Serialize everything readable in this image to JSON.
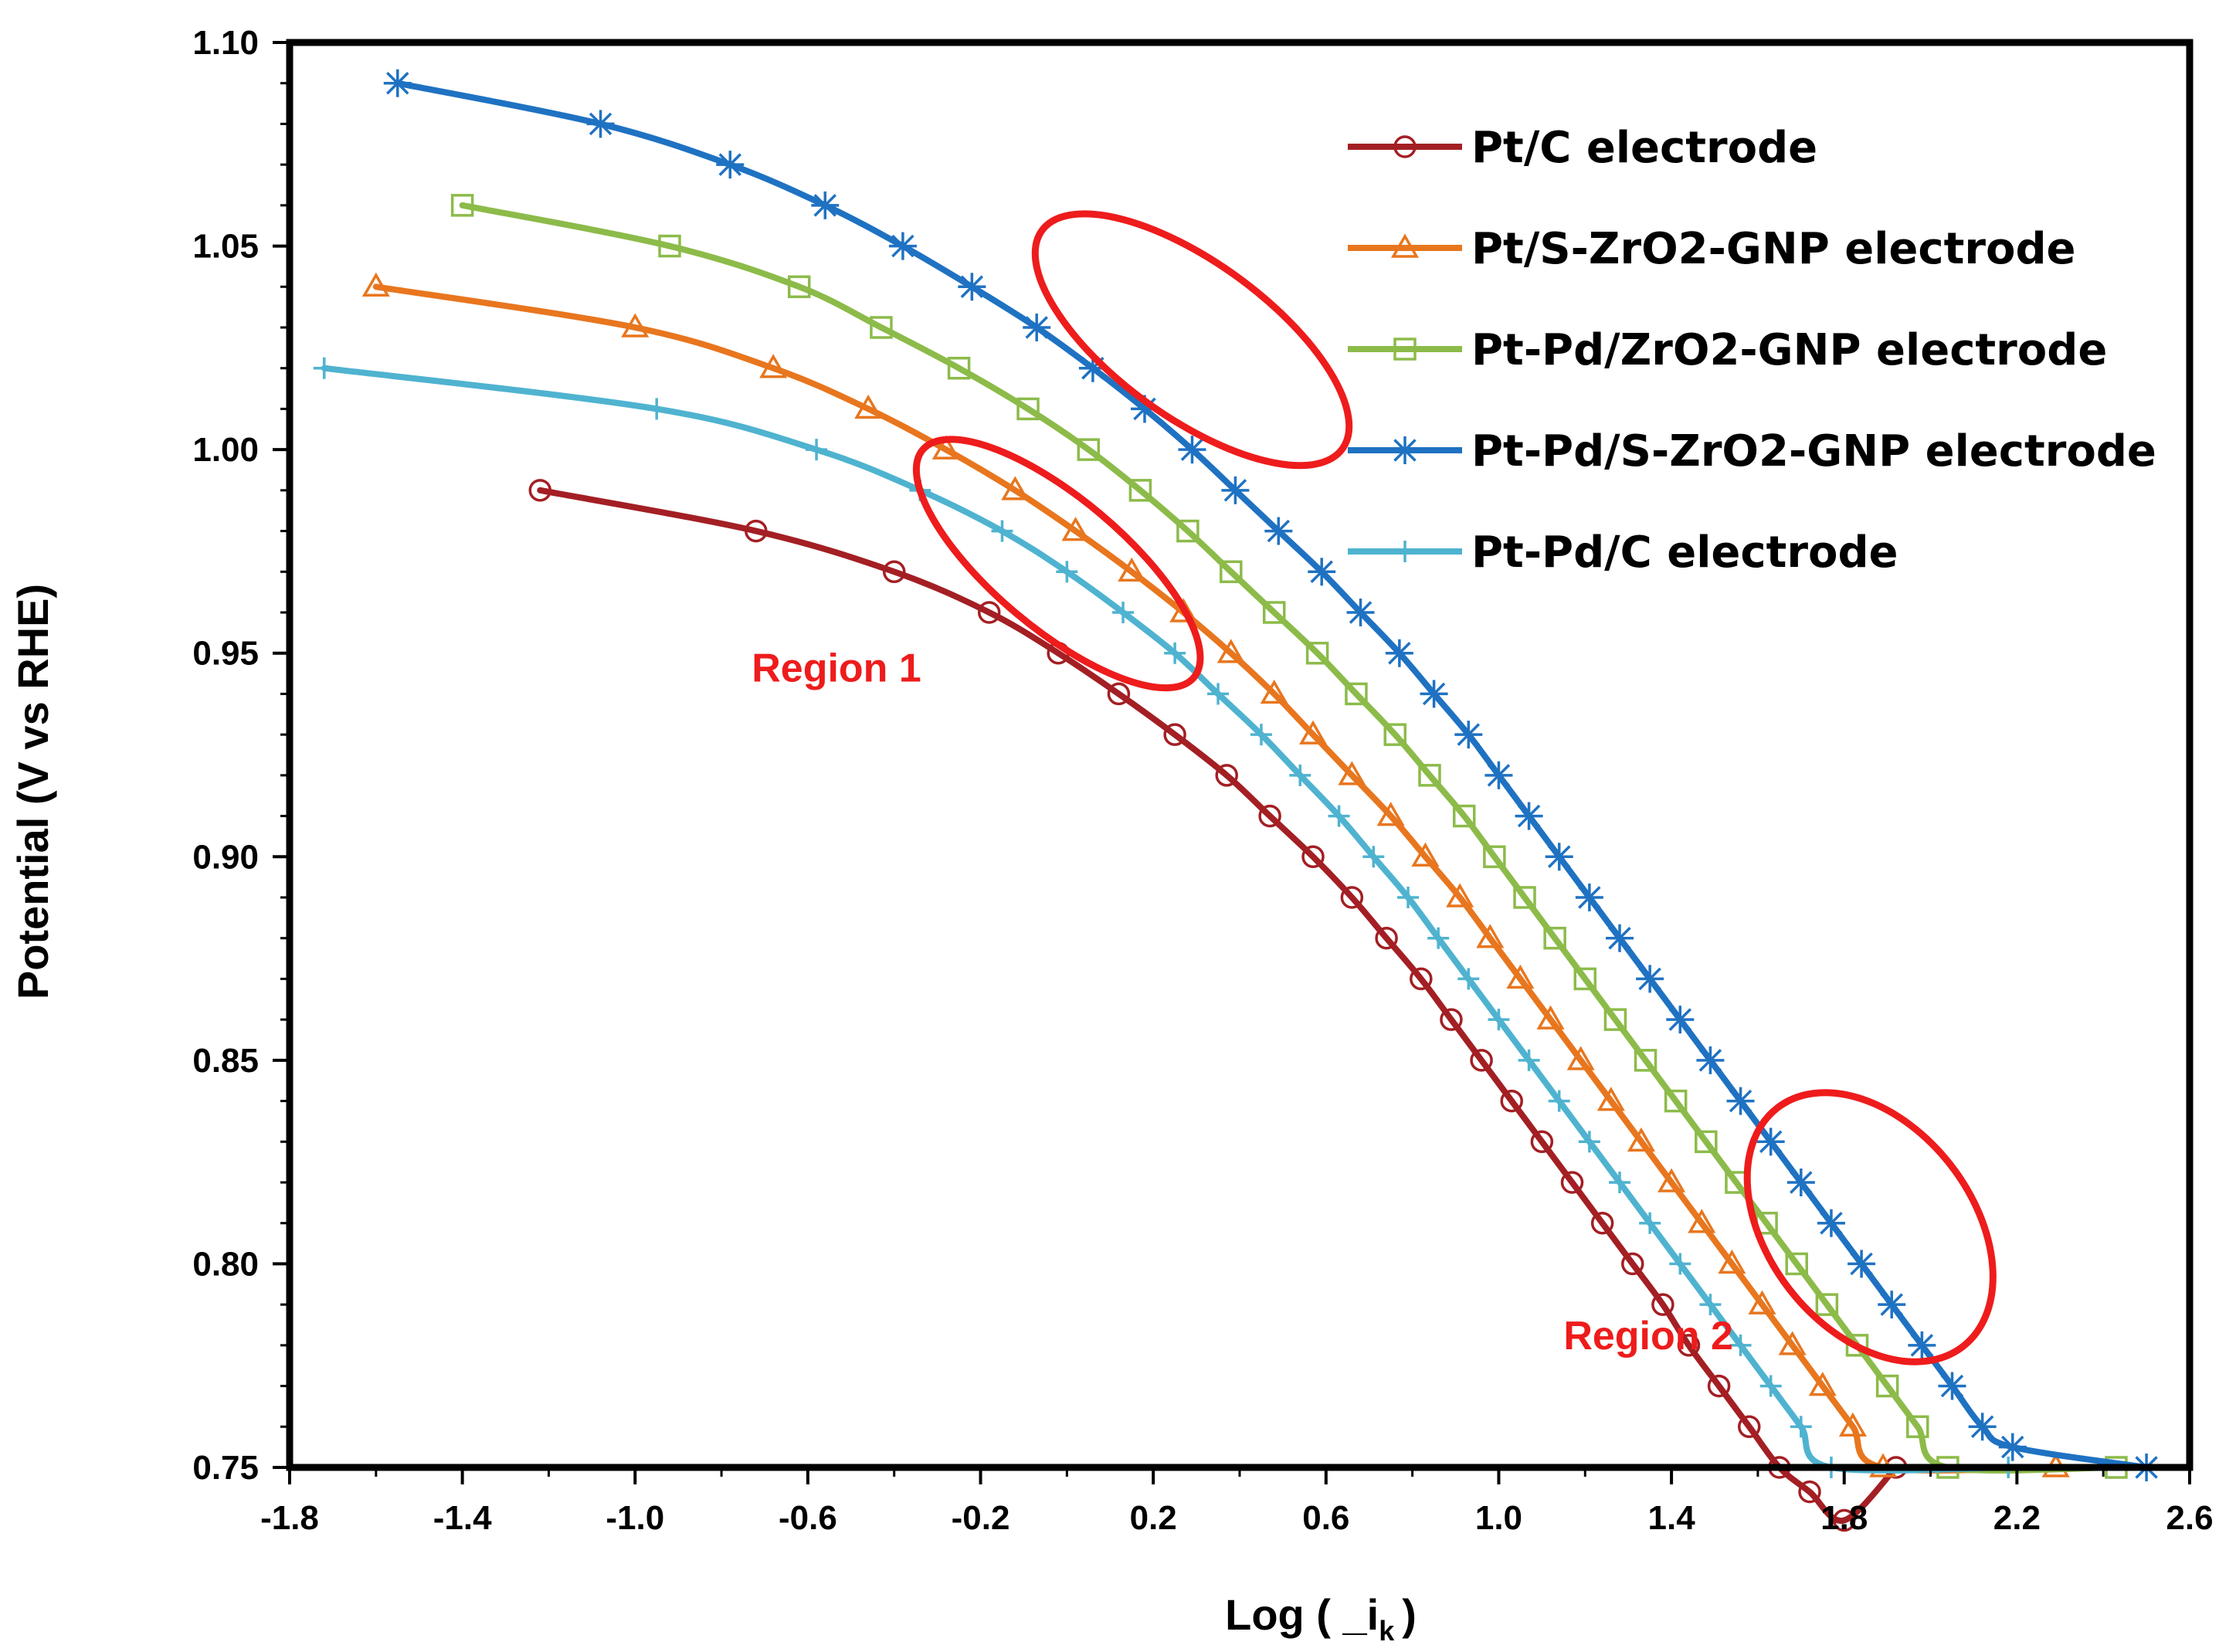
{
  "chart_data": {
    "type": "line",
    "title": "",
    "xlabel": "Log ( _i",
    "xlabel_sub": "k",
    "xlabel_close": ")",
    "ylabel": "Potential (V vs RHE)",
    "xlim": [
      -1.8,
      2.6
    ],
    "ylim": [
      0.75,
      1.1
    ],
    "x_ticks": [
      -1.8,
      -1.4,
      -1.0,
      -0.6,
      -0.2,
      0.2,
      0.6,
      1.0,
      1.4,
      1.8,
      2.2,
      2.6
    ],
    "x_tick_labels": [
      "-1.8",
      "-1.4",
      "-1.0",
      "-0.6",
      "-0.2",
      "0.2",
      "0.6",
      "1.0",
      "1.4",
      "1.8",
      "2.2",
      "2.6"
    ],
    "y_ticks": [
      0.75,
      0.8,
      0.85,
      0.9,
      0.95,
      1.0,
      1.05,
      1.1
    ],
    "y_tick_labels": [
      "0.75",
      "0.80",
      "0.85",
      "0.90",
      "0.95",
      "1.00",
      "1.05",
      "1.10"
    ],
    "legend_position": "top-right",
    "series": [
      {
        "name": "Pt/C electrode",
        "color": "#a31f24",
        "marker": "circle",
        "points": [
          [
            -1.22,
            0.99
          ],
          [
            -0.72,
            0.98
          ],
          [
            -0.4,
            0.97
          ],
          [
            -0.18,
            0.96
          ],
          [
            -0.02,
            0.95
          ],
          [
            0.12,
            0.94
          ],
          [
            0.25,
            0.93
          ],
          [
            0.37,
            0.92
          ],
          [
            0.47,
            0.91
          ],
          [
            0.57,
            0.9
          ],
          [
            0.66,
            0.89
          ],
          [
            0.74,
            0.88
          ],
          [
            0.82,
            0.87
          ],
          [
            0.89,
            0.86
          ],
          [
            0.96,
            0.85
          ],
          [
            1.03,
            0.84
          ],
          [
            1.1,
            0.83
          ],
          [
            1.17,
            0.82
          ],
          [
            1.24,
            0.81
          ],
          [
            1.31,
            0.8
          ],
          [
            1.38,
            0.79
          ],
          [
            1.44,
            0.78
          ],
          [
            1.51,
            0.77
          ],
          [
            1.58,
            0.76
          ],
          [
            1.65,
            0.75
          ],
          [
            1.72,
            0.744
          ],
          [
            1.8,
            0.737
          ],
          [
            1.92,
            0.75
          ]
        ]
      },
      {
        "name": "Pt/S-ZrO2-GNP electrode",
        "color": "#e8761e",
        "marker": "triangle",
        "points": [
          [
            -1.6,
            1.04
          ],
          [
            -1.0,
            1.03
          ],
          [
            -0.68,
            1.02
          ],
          [
            -0.46,
            1.01
          ],
          [
            -0.28,
            1.0
          ],
          [
            -0.12,
            0.99
          ],
          [
            0.02,
            0.98
          ],
          [
            0.15,
            0.97
          ],
          [
            0.27,
            0.96
          ],
          [
            0.38,
            0.95
          ],
          [
            0.48,
            0.94
          ],
          [
            0.57,
            0.93
          ],
          [
            0.66,
            0.92
          ],
          [
            0.75,
            0.91
          ],
          [
            0.83,
            0.9
          ],
          [
            0.91,
            0.89
          ],
          [
            0.98,
            0.88
          ],
          [
            1.05,
            0.87
          ],
          [
            1.12,
            0.86
          ],
          [
            1.19,
            0.85
          ],
          [
            1.26,
            0.84
          ],
          [
            1.33,
            0.83
          ],
          [
            1.4,
            0.82
          ],
          [
            1.47,
            0.81
          ],
          [
            1.54,
            0.8
          ],
          [
            1.61,
            0.79
          ],
          [
            1.68,
            0.78
          ],
          [
            1.75,
            0.77
          ],
          [
            1.82,
            0.76
          ],
          [
            1.89,
            0.75
          ],
          [
            2.29,
            0.75
          ]
        ]
      },
      {
        "name": "Pt-Pd/ZrO2-GNP electrode",
        "color": "#8cbb4a",
        "marker": "square",
        "points": [
          [
            -1.4,
            1.06
          ],
          [
            -0.92,
            1.05
          ],
          [
            -0.62,
            1.04
          ],
          [
            -0.43,
            1.03
          ],
          [
            -0.25,
            1.02
          ],
          [
            -0.09,
            1.01
          ],
          [
            0.05,
            1.0
          ],
          [
            0.17,
            0.99
          ],
          [
            0.28,
            0.98
          ],
          [
            0.38,
            0.97
          ],
          [
            0.48,
            0.96
          ],
          [
            0.58,
            0.95
          ],
          [
            0.67,
            0.94
          ],
          [
            0.76,
            0.93
          ],
          [
            0.84,
            0.92
          ],
          [
            0.92,
            0.91
          ],
          [
            0.99,
            0.9
          ],
          [
            1.06,
            0.89
          ],
          [
            1.13,
            0.88
          ],
          [
            1.2,
            0.87
          ],
          [
            1.27,
            0.86
          ],
          [
            1.34,
            0.85
          ],
          [
            1.41,
            0.84
          ],
          [
            1.48,
            0.83
          ],
          [
            1.55,
            0.82
          ],
          [
            1.62,
            0.81
          ],
          [
            1.69,
            0.8
          ],
          [
            1.76,
            0.79
          ],
          [
            1.83,
            0.78
          ],
          [
            1.9,
            0.77
          ],
          [
            1.97,
            0.76
          ],
          [
            2.04,
            0.75
          ],
          [
            2.43,
            0.75
          ]
        ]
      },
      {
        "name": "Pt-Pd/S-ZrO2-GNP electrode",
        "color": "#1f72c2",
        "marker": "star",
        "points": [
          [
            -1.55,
            1.09
          ],
          [
            -1.08,
            1.08
          ],
          [
            -0.78,
            1.07
          ],
          [
            -0.56,
            1.06
          ],
          [
            -0.38,
            1.05
          ],
          [
            -0.22,
            1.04
          ],
          [
            -0.07,
            1.03
          ],
          [
            0.06,
            1.02
          ],
          [
            0.18,
            1.01
          ],
          [
            0.29,
            1.0
          ],
          [
            0.39,
            0.99
          ],
          [
            0.49,
            0.98
          ],
          [
            0.59,
            0.97
          ],
          [
            0.68,
            0.96
          ],
          [
            0.77,
            0.95
          ],
          [
            0.85,
            0.94
          ],
          [
            0.93,
            0.93
          ],
          [
            1.0,
            0.92
          ],
          [
            1.07,
            0.91
          ],
          [
            1.14,
            0.9
          ],
          [
            1.21,
            0.89
          ],
          [
            1.28,
            0.88
          ],
          [
            1.35,
            0.87
          ],
          [
            1.42,
            0.86
          ],
          [
            1.49,
            0.85
          ],
          [
            1.56,
            0.84
          ],
          [
            1.63,
            0.83
          ],
          [
            1.7,
            0.82
          ],
          [
            1.77,
            0.81
          ],
          [
            1.84,
            0.8
          ],
          [
            1.91,
            0.79
          ],
          [
            1.98,
            0.78
          ],
          [
            2.05,
            0.77
          ],
          [
            2.12,
            0.76
          ],
          [
            2.19,
            0.755
          ],
          [
            2.5,
            0.75
          ]
        ]
      },
      {
        "name": "Pt-Pd/C electrode",
        "color": "#4fb3d0",
        "marker": "plus",
        "points": [
          [
            -1.72,
            1.02
          ],
          [
            -0.95,
            1.01
          ],
          [
            -0.58,
            1.0
          ],
          [
            -0.34,
            0.99
          ],
          [
            -0.15,
            0.98
          ],
          [
            0.0,
            0.97
          ],
          [
            0.13,
            0.96
          ],
          [
            0.25,
            0.95
          ],
          [
            0.35,
            0.94
          ],
          [
            0.45,
            0.93
          ],
          [
            0.54,
            0.92
          ],
          [
            0.63,
            0.91
          ],
          [
            0.71,
            0.9
          ],
          [
            0.79,
            0.89
          ],
          [
            0.86,
            0.88
          ],
          [
            0.93,
            0.87
          ],
          [
            1.0,
            0.86
          ],
          [
            1.07,
            0.85
          ],
          [
            1.14,
            0.84
          ],
          [
            1.21,
            0.83
          ],
          [
            1.28,
            0.82
          ],
          [
            1.35,
            0.81
          ],
          [
            1.42,
            0.8
          ],
          [
            1.49,
            0.79
          ],
          [
            1.56,
            0.78
          ],
          [
            1.63,
            0.77
          ],
          [
            1.7,
            0.76
          ],
          [
            1.77,
            0.75
          ],
          [
            2.18,
            0.75
          ]
        ]
      }
    ],
    "annotations": [
      {
        "text": "Region 1",
        "x": -0.73,
        "y": 0.943,
        "color": "#ee1c1c"
      },
      {
        "text": "Region 2",
        "x": 1.15,
        "y": 0.779,
        "color": "#ee1c1c"
      }
    ],
    "highlight_ellipses": [
      {
        "name": "region1-upper-ellipse",
        "cx": 0.29,
        "cy": 1.027,
        "rx_data": 0.86,
        "ry_data": 0.038,
        "angle_deg": 36
      },
      {
        "name": "region1-lower-ellipse",
        "cx": -0.02,
        "cy": 0.972,
        "rx_data": 0.82,
        "ry_data": 0.032,
        "angle_deg": 40
      },
      {
        "name": "region2-ellipse",
        "cx": 1.86,
        "cy": 0.809,
        "rx_data": 0.7,
        "ry_data": 0.05,
        "angle_deg": 52
      }
    ],
    "ellipse_color": "#ee1c1c"
  }
}
